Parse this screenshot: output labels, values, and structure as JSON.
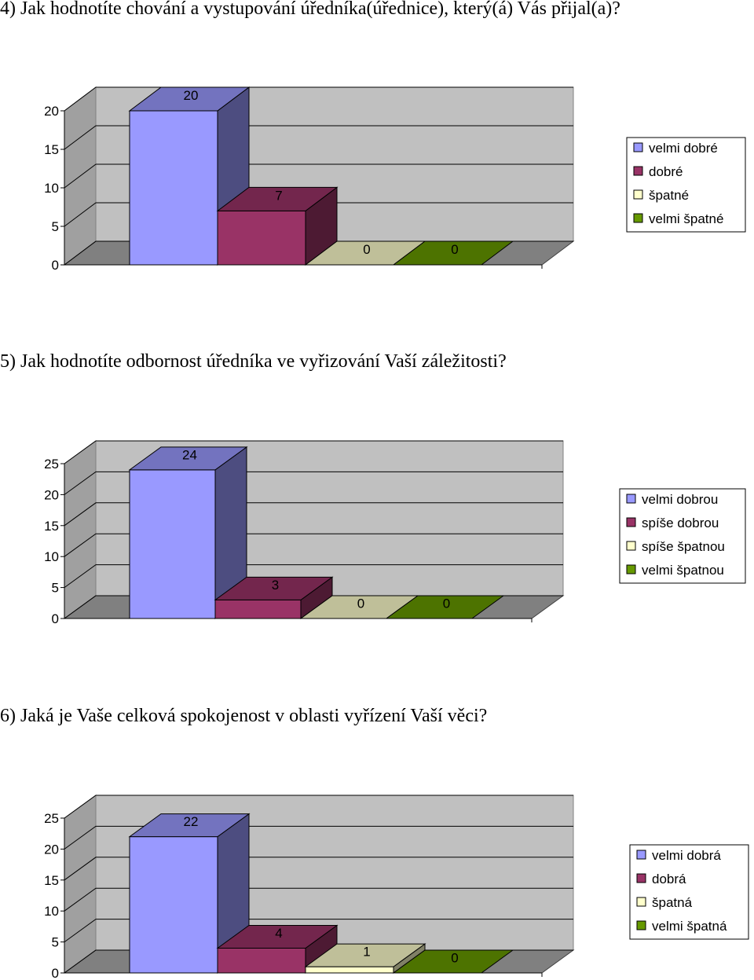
{
  "questions": [
    "4) Jak hodnotíte chování a vystupování úředníka(úřednice), který(á) Vás přijal(a)?",
    "5) Jak hodnotíte odbornost úředníka ve vyřizování Vaší záležitosti?",
    "6) Jaká je Vaše celková spokojenost v oblasti vyřízení Vaší věci?"
  ],
  "colors": {
    "series": [
      "#9999FF",
      "#993366",
      "#FFFFCC",
      "#669900"
    ],
    "wall": "#C0C0C0",
    "floor": "#808080"
  },
  "chart_data": [
    {
      "type": "bar",
      "three_d": true,
      "ylim": [
        0,
        20
      ],
      "yticks": [
        "0",
        "5",
        "10",
        "15",
        "20"
      ],
      "series": [
        {
          "name": "velmi dobré",
          "values": [
            20
          ]
        },
        {
          "name": "dobré",
          "values": [
            7
          ]
        },
        {
          "name": "špatné",
          "values": [
            0
          ]
        },
        {
          "name": "velmi špatné",
          "values": [
            0
          ]
        }
      ],
      "data_labels": [
        "20",
        "7",
        "0",
        "0"
      ],
      "legend": "right",
      "grid": true
    },
    {
      "type": "bar",
      "three_d": true,
      "ylim": [
        0,
        25
      ],
      "yticks": [
        "0",
        "5",
        "10",
        "15",
        "20",
        "25"
      ],
      "series": [
        {
          "name": "velmi dobrou",
          "values": [
            24
          ]
        },
        {
          "name": "spíše dobrou",
          "values": [
            3
          ]
        },
        {
          "name": "spíše špatnou",
          "values": [
            0
          ]
        },
        {
          "name": "velmi špatnou",
          "values": [
            0
          ]
        }
      ],
      "data_labels": [
        "24",
        "3",
        "0",
        "0"
      ],
      "legend": "right",
      "grid": true
    },
    {
      "type": "bar",
      "three_d": true,
      "ylim": [
        0,
        25
      ],
      "yticks": [
        "0",
        "5",
        "10",
        "15",
        "20",
        "25"
      ],
      "series": [
        {
          "name": "velmi dobrá",
          "values": [
            22
          ]
        },
        {
          "name": "dobrá",
          "values": [
            4
          ]
        },
        {
          "name": "špatná",
          "values": [
            1
          ]
        },
        {
          "name": "velmi špatná",
          "values": [
            0
          ]
        }
      ],
      "data_labels": [
        "22",
        "4",
        "1",
        "0"
      ],
      "legend": "right",
      "grid": true
    }
  ]
}
